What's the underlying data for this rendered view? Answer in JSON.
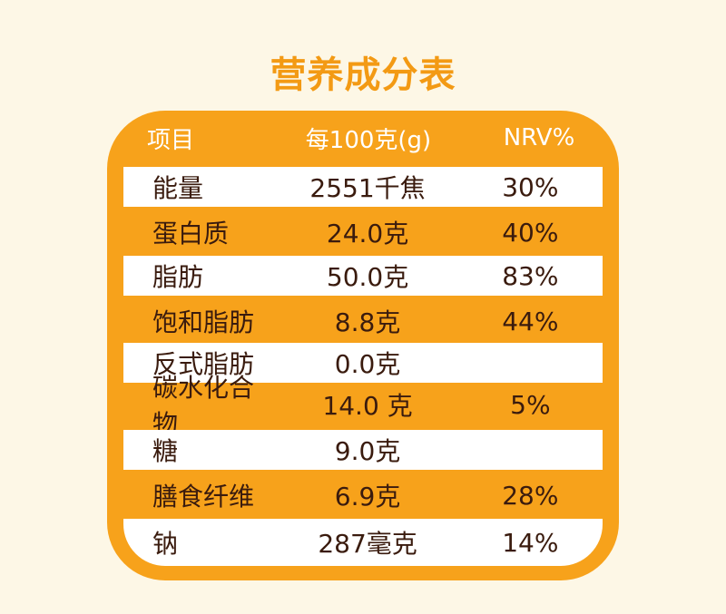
{
  "title": "营养成分表",
  "colors": {
    "background": "#fdf7e6",
    "accent": "#f7a21b",
    "title": "#f39a14",
    "text": "#3a1b0e"
  },
  "table": {
    "headers": [
      "项目",
      "每100克(g)",
      "NRV%"
    ],
    "rows": [
      {
        "item": "能量",
        "amount": "2551千焦",
        "nrv": "30%"
      },
      {
        "item": "蛋白质",
        "amount": "24.0克",
        "nrv": "40%"
      },
      {
        "item": "脂肪",
        "amount": "50.0克",
        "nrv": "83%"
      },
      {
        "item": "饱和脂肪",
        "amount": "8.8克",
        "nrv": "44%"
      },
      {
        "item": "反式脂肪",
        "amount": "0.0克",
        "nrv": ""
      },
      {
        "item": "碳水化合物",
        "amount": "14.0 克",
        "nrv": "5%"
      },
      {
        "item": "糖",
        "amount": "9.0克",
        "nrv": ""
      },
      {
        "item": "膳食纤维",
        "amount": "6.9克",
        "nrv": "28%"
      },
      {
        "item": "钠",
        "amount": "287毫克",
        "nrv": "14%"
      }
    ]
  }
}
